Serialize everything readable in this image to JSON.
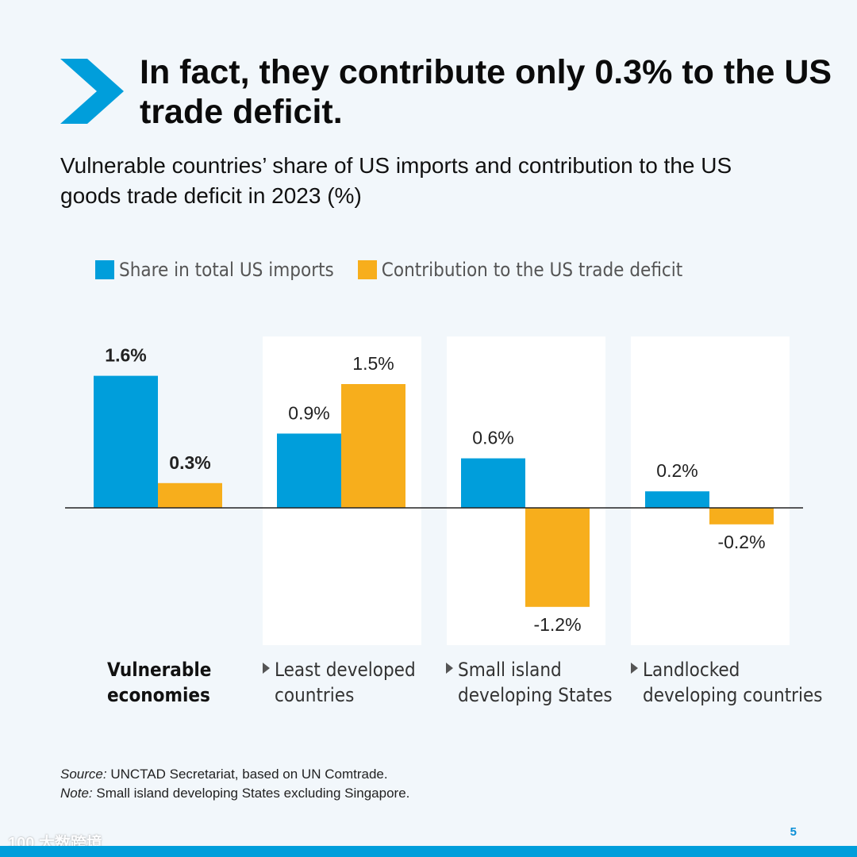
{
  "headline": "In fact, they contribute only 0.3% to the US trade deficit.",
  "subtitle": "Vulnerable countries’ share of US imports and contribution to the US goods trade deficit in 2023 (%)",
  "colors": {
    "accent": "#009edb",
    "imports": "#009edb",
    "deficit": "#f7ae1c"
  },
  "chart_data": {
    "type": "bar",
    "title": "Vulnerable countries’ share of US imports and contribution to the US goods trade deficit in 2023 (%)",
    "categories": [
      "Vulnerable economies",
      "Least developed countries",
      "Small island developing States",
      "Landlocked developing countries"
    ],
    "series": [
      {
        "name": "Share in total US imports",
        "color": "#009edb",
        "values": [
          1.6,
          0.9,
          0.6,
          0.2
        ],
        "labels": [
          "1.6%",
          "0.9%",
          "0.6%",
          "0.2%"
        ]
      },
      {
        "name": "Contribution to the US trade deficit",
        "color": "#f7ae1c",
        "values": [
          0.3,
          1.5,
          -1.2,
          -0.2
        ],
        "labels": [
          "0.3%",
          "1.5%",
          "-1.2%",
          "-0.2%"
        ]
      }
    ],
    "ylim": [
      -1.5,
      1.6
    ],
    "xlabel": "",
    "ylabel": "",
    "legend": "top-left"
  },
  "category_labels": [
    {
      "line1": "Vulnerable",
      "line2": "economies"
    },
    {
      "line1": "Least developed",
      "line2": "countries"
    },
    {
      "line1": "Small island",
      "line2": "developing States"
    },
    {
      "line1": "Landlocked",
      "line2": "developing countries"
    }
  ],
  "footnotes": {
    "source_label": "Source:",
    "source_text": " UNCTAD Secretariat, based on UN Comtrade.",
    "note_label": "Note:",
    "note_text": " Small island developing States excluding Singapore."
  },
  "page_number": "5",
  "watermark": "100 大数跨境"
}
